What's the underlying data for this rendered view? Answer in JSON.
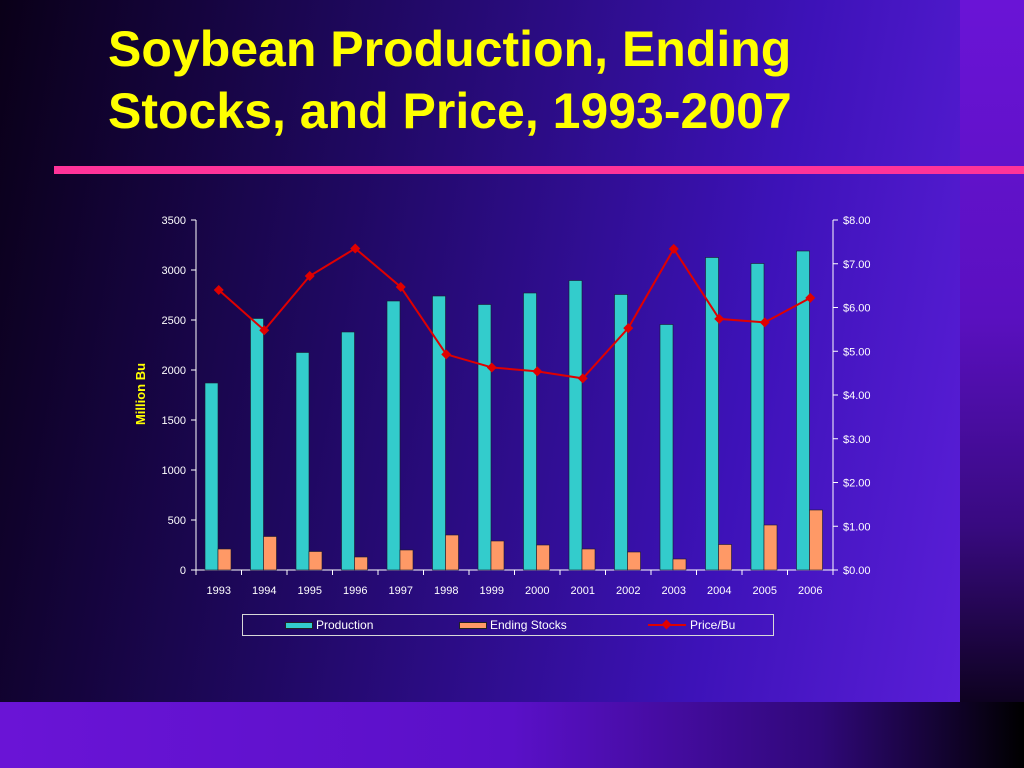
{
  "slide": {
    "title_line1": "Soybean Production, Ending",
    "title_line2": "Stocks, and Price, 1993-2007"
  },
  "colors": {
    "title": "#ffff00",
    "rule": "#ff3399",
    "production": "#33cccc",
    "ending_stocks": "#ff9966",
    "price": "#e00000"
  },
  "chart_data": {
    "type": "bar",
    "categories": [
      "1993",
      "1994",
      "1995",
      "1996",
      "1997",
      "1998",
      "1999",
      "2000",
      "2001",
      "2002",
      "2003",
      "2004",
      "2005",
      "2006"
    ],
    "series": [
      {
        "name": "Production",
        "type": "bar",
        "axis": "left",
        "values": [
          1870,
          2515,
          2175,
          2380,
          2690,
          2740,
          2655,
          2770,
          2895,
          2755,
          2455,
          3125,
          3065,
          3190
        ]
      },
      {
        "name": "Ending Stocks",
        "type": "bar",
        "axis": "left",
        "values": [
          210,
          335,
          185,
          130,
          200,
          350,
          290,
          250,
          210,
          180,
          110,
          255,
          450,
          600
        ]
      },
      {
        "name": "Price/Bu",
        "type": "line",
        "axis": "right",
        "values": [
          6.4,
          5.48,
          6.72,
          7.35,
          6.47,
          4.93,
          4.63,
          4.54,
          4.38,
          5.53,
          7.34,
          5.74,
          5.66,
          6.22
        ]
      }
    ],
    "ylabel": "Million Bu",
    "ylim": [
      0,
      3500
    ],
    "y_ticks": [
      "0",
      "500",
      "1000",
      "1500",
      "2000",
      "2500",
      "3000",
      "3500"
    ],
    "y2lim": [
      0,
      8
    ],
    "y2_ticks": [
      "$0.00",
      "$1.00",
      "$2.00",
      "$3.00",
      "$4.00",
      "$5.00",
      "$6.00",
      "$7.00",
      "$8.00"
    ],
    "grid": false,
    "legend_position": "bottom"
  }
}
